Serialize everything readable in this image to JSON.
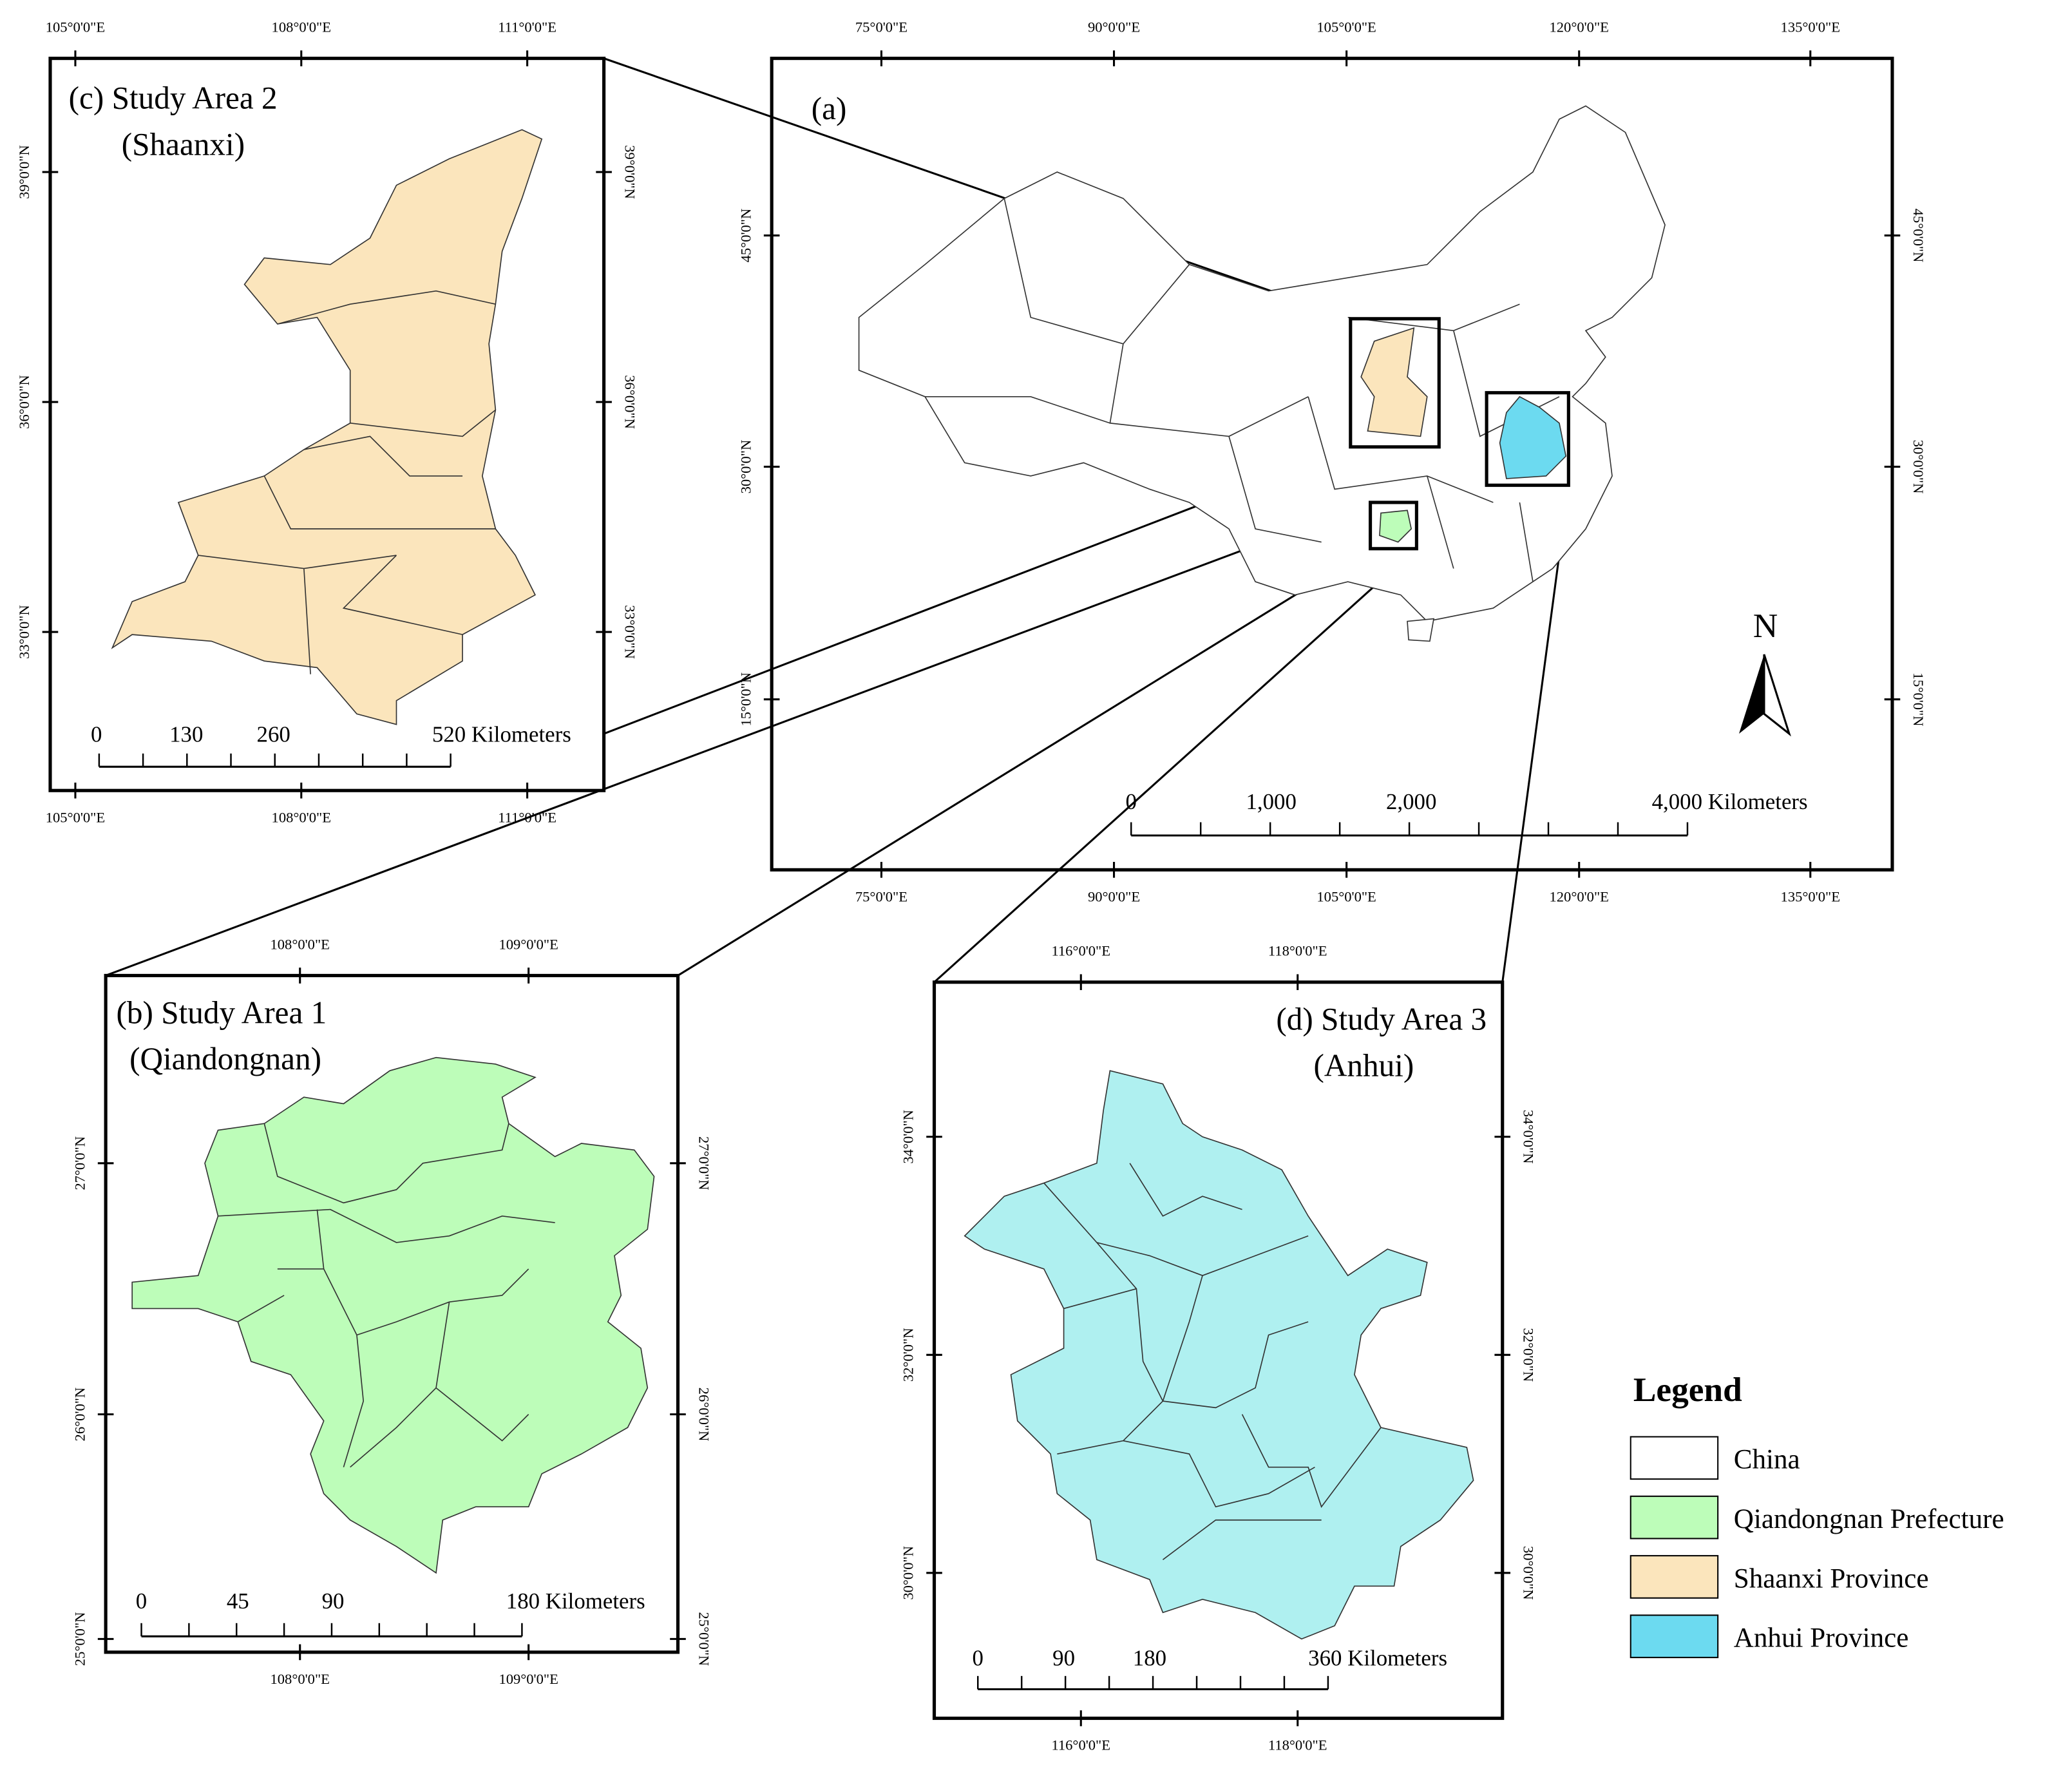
{
  "panels": [
    {
      "title": [
        "(a)"
      ],
      "top_labels": [
        "75°0'0\"E",
        "90°0'0\"E",
        "105°0'0\"E",
        "120°0'0\"E",
        "135°0'0\"E"
      ],
      "bottom_labels": [
        "75°0'0\"E",
        "90°0'0\"E",
        "105°0'0\"E",
        "120°0'0\"E",
        "135°0'0\"E"
      ],
      "left_labels": [
        "45°0'0\"N",
        "30°0'0\"N",
        "15°0'0\"N"
      ],
      "right_labels": [
        "45°0'0\"N",
        "30°0'0\"N",
        "15°0'0\"N"
      ],
      "scale": [
        "0",
        "1,000",
        "2,000",
        "4,000 Kilometers"
      ]
    },
    {
      "title": [
        "(c) Study Area 2",
        "(Shaanxi)"
      ],
      "top_labels": [
        "105°0'0\"E",
        "108°0'0\"E",
        "111°0'0\"E"
      ],
      "bottom_labels": [
        "105°0'0\"E",
        "108°0'0\"E",
        "111°0'0\"E"
      ],
      "left_labels": [
        "39°0'0\"N",
        "36°0'0\"N",
        "33°0'0\"N"
      ],
      "right_labels": [
        "39°0'0\"N",
        "36°0'0\"N",
        "33°0'0\"N"
      ],
      "scale": [
        "0",
        "130",
        "260",
        "520 Kilometers"
      ]
    },
    {
      "title": [
        "(b) Study Area 1",
        "(Qiandongnan)"
      ],
      "top_labels": [
        "108°0'0\"E",
        "109°0'0\"E"
      ],
      "bottom_labels": [
        "108°0'0\"E",
        "109°0'0\"E"
      ],
      "left_labels": [
        "27°0'0\"N",
        "26°0'0\"N",
        "25°0'0\"N"
      ],
      "right_labels": [
        "27°0'0\"N",
        "26°0'0\"N",
        "25°0'0\"N"
      ],
      "scale": [
        "0",
        "45",
        "90",
        "180 Kilometers"
      ]
    },
    {
      "title": [
        "(d) Study Area 3",
        "(Anhui)"
      ],
      "top_labels": [
        "116°0'0\"E",
        "118°0'0\"E"
      ],
      "bottom_labels": [
        "116°0'0\"E",
        "118°0'0\"E"
      ],
      "left_labels": [
        "34°0'0\"N",
        "32°0'0\"N",
        "30°0'0\"N"
      ],
      "right_labels": [
        "34°0'0\"N",
        "32°0'0\"N",
        "30°0'0\"N"
      ],
      "scale": [
        "0",
        "90",
        "180",
        "360 Kilometers"
      ]
    }
  ],
  "north": "N",
  "legend": {
    "title": "Legend",
    "items": [
      {
        "label": "China",
        "color": "#ffffff"
      },
      {
        "label": "Qiandongnan Prefecture",
        "color": "#bdfdb9"
      },
      {
        "label": "Shaanxi Province",
        "color": "#fbe5bc"
      },
      {
        "label": "Anhui Province",
        "color": "#6cdaf0"
      }
    ]
  }
}
